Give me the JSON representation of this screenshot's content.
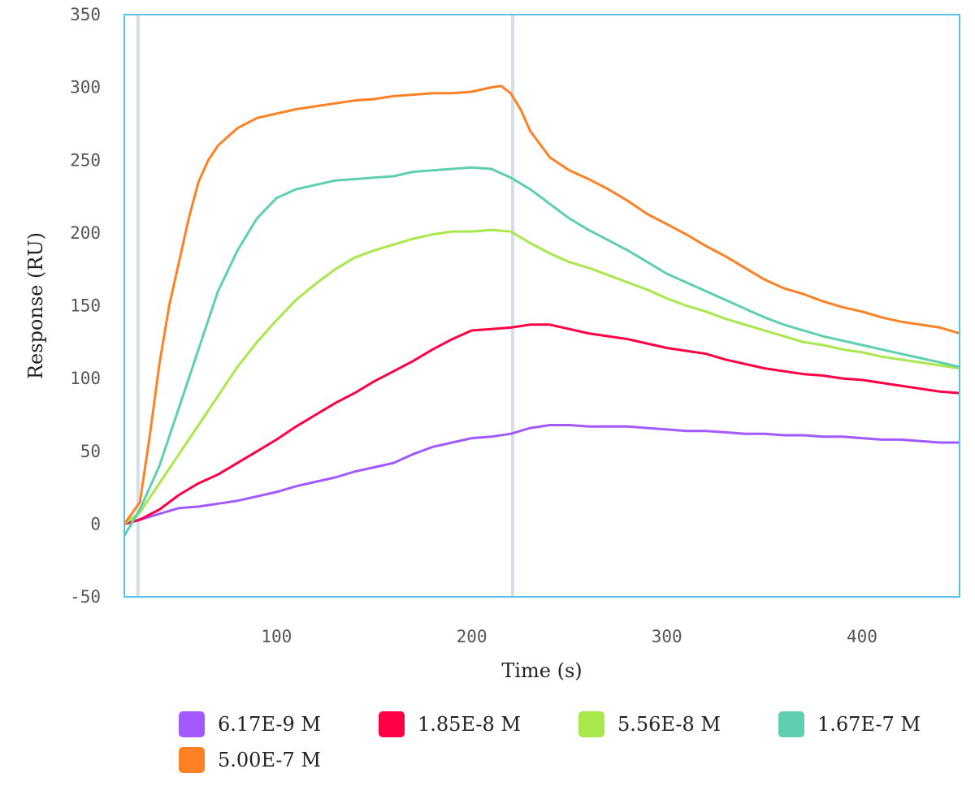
{
  "chart_data": {
    "type": "line",
    "xlabel": "Time (s)",
    "ylabel": "Response (RU)",
    "xlim": [
      22,
      450
    ],
    "ylim": [
      -50,
      350
    ],
    "x_ticks": [
      100,
      200,
      300,
      400
    ],
    "y_ticks": [
      -50,
      0,
      50,
      100,
      150,
      200,
      250,
      300,
      350
    ],
    "grid": false,
    "legend_position": "bottom",
    "markers": [
      {
        "x": 29,
        "style": "vertical-line",
        "color": "#d5dde6"
      },
      {
        "x": 221,
        "style": "vertical-line",
        "color": "#d5dde6"
      }
    ],
    "series": [
      {
        "name": "6.17E-9 M",
        "color": "#a259ff",
        "points": [
          [
            22,
            0
          ],
          [
            30,
            3
          ],
          [
            40,
            7
          ],
          [
            50,
            11
          ],
          [
            60,
            12
          ],
          [
            70,
            14
          ],
          [
            80,
            16
          ],
          [
            90,
            19
          ],
          [
            100,
            22
          ],
          [
            110,
            26
          ],
          [
            120,
            29
          ],
          [
            130,
            32
          ],
          [
            140,
            36
          ],
          [
            150,
            39
          ],
          [
            160,
            42
          ],
          [
            170,
            48
          ],
          [
            180,
            53
          ],
          [
            190,
            56
          ],
          [
            200,
            59
          ],
          [
            210,
            60
          ],
          [
            220,
            62
          ],
          [
            230,
            66
          ],
          [
            240,
            68
          ],
          [
            250,
            68
          ],
          [
            260,
            67
          ],
          [
            270,
            67
          ],
          [
            280,
            67
          ],
          [
            290,
            66
          ],
          [
            300,
            65
          ],
          [
            310,
            64
          ],
          [
            320,
            64
          ],
          [
            330,
            63
          ],
          [
            340,
            62
          ],
          [
            350,
            62
          ],
          [
            360,
            61
          ],
          [
            370,
            61
          ],
          [
            380,
            60
          ],
          [
            390,
            60
          ],
          [
            400,
            59
          ],
          [
            410,
            58
          ],
          [
            420,
            58
          ],
          [
            430,
            57
          ],
          [
            440,
            56
          ],
          [
            450,
            56
          ]
        ]
      },
      {
        "name": "1.85E-8 M",
        "color": "#ff0044",
        "points": [
          [
            22,
            0
          ],
          [
            30,
            3
          ],
          [
            40,
            10
          ],
          [
            50,
            20
          ],
          [
            60,
            28
          ],
          [
            70,
            34
          ],
          [
            80,
            42
          ],
          [
            90,
            50
          ],
          [
            100,
            58
          ],
          [
            110,
            67
          ],
          [
            120,
            75
          ],
          [
            130,
            83
          ],
          [
            140,
            90
          ],
          [
            150,
            98
          ],
          [
            160,
            105
          ],
          [
            170,
            112
          ],
          [
            180,
            120
          ],
          [
            190,
            127
          ],
          [
            200,
            133
          ],
          [
            210,
            134
          ],
          [
            220,
            135
          ],
          [
            230,
            137
          ],
          [
            240,
            137
          ],
          [
            250,
            134
          ],
          [
            260,
            131
          ],
          [
            270,
            129
          ],
          [
            280,
            127
          ],
          [
            290,
            124
          ],
          [
            300,
            121
          ],
          [
            310,
            119
          ],
          [
            320,
            117
          ],
          [
            330,
            113
          ],
          [
            340,
            110
          ],
          [
            350,
            107
          ],
          [
            360,
            105
          ],
          [
            370,
            103
          ],
          [
            380,
            102
          ],
          [
            390,
            100
          ],
          [
            400,
            99
          ],
          [
            410,
            97
          ],
          [
            420,
            95
          ],
          [
            430,
            93
          ],
          [
            440,
            91
          ],
          [
            450,
            90
          ]
        ]
      },
      {
        "name": "5.56E-8 M",
        "color": "#a8e84a",
        "points": [
          [
            22,
            0
          ],
          [
            30,
            8
          ],
          [
            40,
            28
          ],
          [
            50,
            48
          ],
          [
            60,
            68
          ],
          [
            70,
            88
          ],
          [
            80,
            108
          ],
          [
            90,
            125
          ],
          [
            100,
            140
          ],
          [
            110,
            154
          ],
          [
            120,
            165
          ],
          [
            130,
            175
          ],
          [
            140,
            183
          ],
          [
            150,
            188
          ],
          [
            160,
            192
          ],
          [
            170,
            196
          ],
          [
            180,
            199
          ],
          [
            190,
            201
          ],
          [
            200,
            201
          ],
          [
            210,
            202
          ],
          [
            220,
            201
          ],
          [
            230,
            193
          ],
          [
            240,
            186
          ],
          [
            250,
            180
          ],
          [
            260,
            176
          ],
          [
            270,
            171
          ],
          [
            280,
            166
          ],
          [
            290,
            161
          ],
          [
            300,
            155
          ],
          [
            310,
            150
          ],
          [
            320,
            146
          ],
          [
            330,
            141
          ],
          [
            340,
            137
          ],
          [
            350,
            133
          ],
          [
            360,
            129
          ],
          [
            370,
            125
          ],
          [
            380,
            123
          ],
          [
            390,
            120
          ],
          [
            400,
            118
          ],
          [
            410,
            115
          ],
          [
            420,
            113
          ],
          [
            430,
            111
          ],
          [
            440,
            109
          ],
          [
            450,
            107
          ]
        ]
      },
      {
        "name": "1.67E-7 M",
        "color": "#5ecfb0",
        "points": [
          [
            22,
            -8
          ],
          [
            30,
            10
          ],
          [
            40,
            40
          ],
          [
            50,
            80
          ],
          [
            60,
            120
          ],
          [
            70,
            160
          ],
          [
            80,
            188
          ],
          [
            90,
            210
          ],
          [
            100,
            224
          ],
          [
            110,
            230
          ],
          [
            120,
            233
          ],
          [
            130,
            236
          ],
          [
            140,
            237
          ],
          [
            150,
            238
          ],
          [
            160,
            239
          ],
          [
            170,
            242
          ],
          [
            180,
            243
          ],
          [
            190,
            244
          ],
          [
            200,
            245
          ],
          [
            210,
            244
          ],
          [
            220,
            238
          ],
          [
            230,
            230
          ],
          [
            240,
            220
          ],
          [
            250,
            210
          ],
          [
            260,
            202
          ],
          [
            270,
            195
          ],
          [
            280,
            188
          ],
          [
            290,
            180
          ],
          [
            300,
            172
          ],
          [
            310,
            166
          ],
          [
            320,
            160
          ],
          [
            330,
            154
          ],
          [
            340,
            148
          ],
          [
            350,
            142
          ],
          [
            360,
            137
          ],
          [
            370,
            133
          ],
          [
            380,
            129
          ],
          [
            390,
            126
          ],
          [
            400,
            123
          ],
          [
            410,
            120
          ],
          [
            420,
            117
          ],
          [
            430,
            114
          ],
          [
            440,
            111
          ],
          [
            450,
            108
          ]
        ]
      },
      {
        "name": "5.00E-7 M",
        "color": "#ff8125",
        "points": [
          [
            22,
            0
          ],
          [
            30,
            15
          ],
          [
            35,
            60
          ],
          [
            40,
            110
          ],
          [
            45,
            150
          ],
          [
            50,
            180
          ],
          [
            55,
            210
          ],
          [
            60,
            235
          ],
          [
            65,
            250
          ],
          [
            70,
            260
          ],
          [
            80,
            272
          ],
          [
            90,
            279
          ],
          [
            100,
            282
          ],
          [
            110,
            285
          ],
          [
            120,
            287
          ],
          [
            130,
            289
          ],
          [
            140,
            291
          ],
          [
            150,
            292
          ],
          [
            160,
            294
          ],
          [
            170,
            295
          ],
          [
            180,
            296
          ],
          [
            190,
            296
          ],
          [
            200,
            297
          ],
          [
            210,
            300
          ],
          [
            215,
            301
          ],
          [
            220,
            296
          ],
          [
            225,
            285
          ],
          [
            230,
            270
          ],
          [
            240,
            252
          ],
          [
            250,
            243
          ],
          [
            260,
            237
          ],
          [
            270,
            230
          ],
          [
            280,
            222
          ],
          [
            290,
            213
          ],
          [
            300,
            206
          ],
          [
            310,
            199
          ],
          [
            320,
            191
          ],
          [
            330,
            184
          ],
          [
            340,
            176
          ],
          [
            350,
            168
          ],
          [
            360,
            162
          ],
          [
            370,
            158
          ],
          [
            380,
            153
          ],
          [
            390,
            149
          ],
          [
            400,
            146
          ],
          [
            410,
            142
          ],
          [
            420,
            139
          ],
          [
            430,
            137
          ],
          [
            440,
            135
          ],
          [
            450,
            131
          ]
        ]
      }
    ]
  }
}
